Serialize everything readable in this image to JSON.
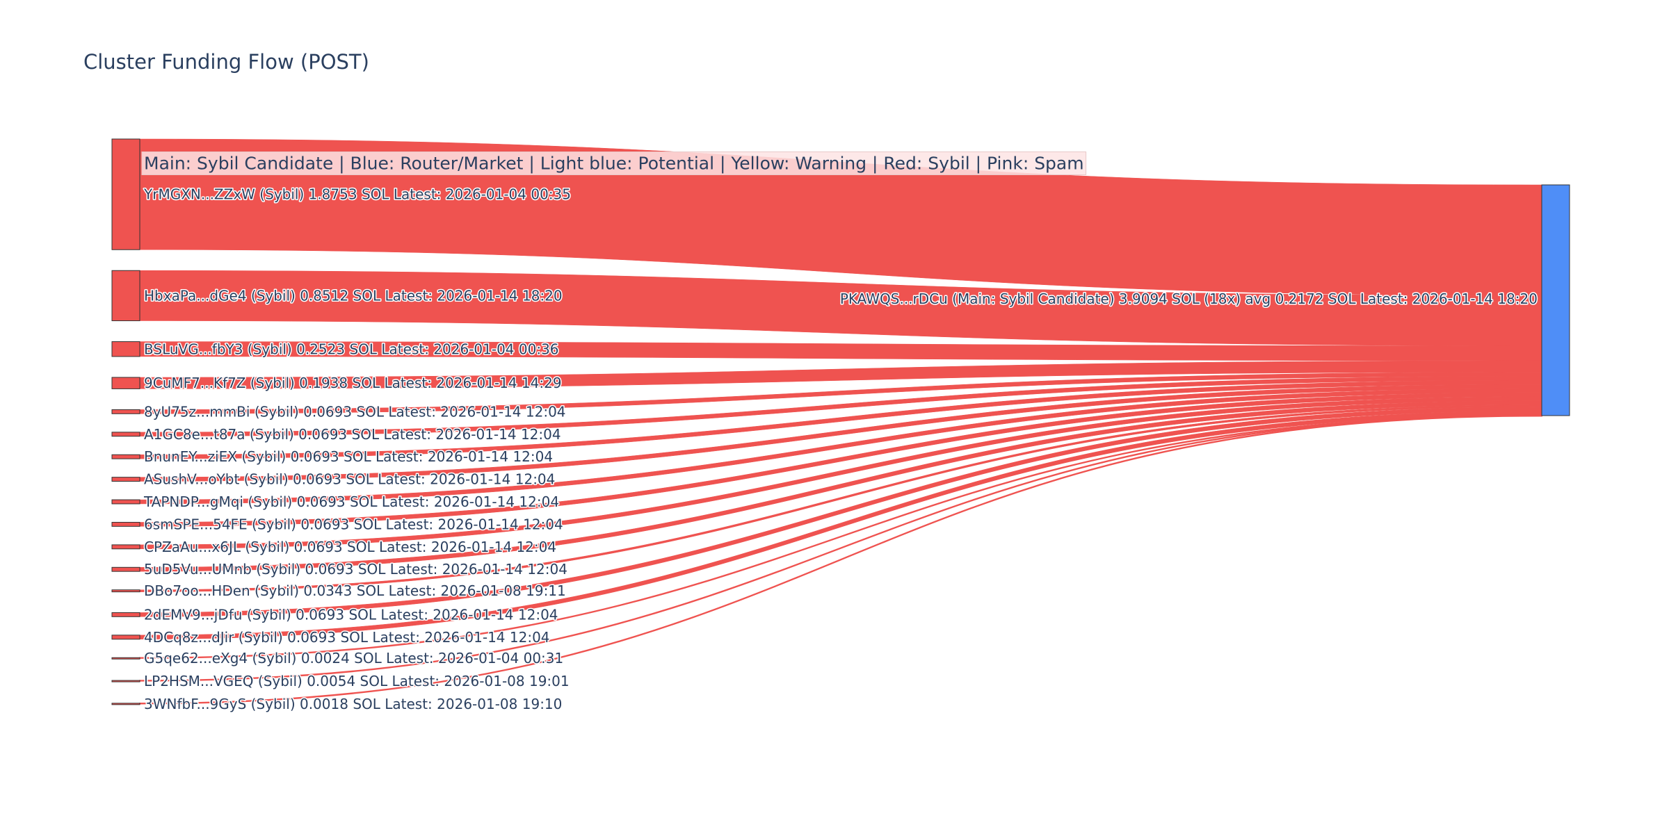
{
  "chart_data": {
    "type": "sankey",
    "title": "Cluster Funding Flow (POST)",
    "legend_note": "Main: Sybil Candidate  |  Blue: Router/Market | Light blue: Potential | Yellow: Warning | Red: Sybil | Pink: Spam",
    "colors": {
      "sybil": "#ef5350",
      "main": "#4f8ef7",
      "node_border": "#333333",
      "legend_bg": "#fde4e4"
    },
    "target": {
      "label": "PKAWQS...rDCu (Main: Sybil Candidate) 3.9094 SOL (18x) avg 0.2172 SOL Latest: 2026-01-14 18:20",
      "value": 3.9094,
      "role": "main"
    },
    "sources": [
      {
        "label": "YrMGXN...ZZxW (Sybil) 1.8753 SOL Latest: 2026-01-04 00:35",
        "value": 1.8753
      },
      {
        "label": "HbxaPa...dGe4 (Sybil) 0.8512 SOL Latest: 2026-01-14 18:20",
        "value": 0.8512
      },
      {
        "label": "BSLuVG...fbY3 (Sybil) 0.2523 SOL Latest: 2026-01-04 00:36",
        "value": 0.2523
      },
      {
        "label": "9CuMF7...Kf7Z (Sybil) 0.1938 SOL Latest: 2026-01-14 14:29",
        "value": 0.1938
      },
      {
        "label": "8yU75z...mmBi (Sybil) 0.0693 SOL Latest: 2026-01-14 12:04",
        "value": 0.0693
      },
      {
        "label": "A1GC8e...t87a (Sybil) 0.0693 SOL Latest: 2026-01-14 12:04",
        "value": 0.0693
      },
      {
        "label": "BnunEY...ziEX (Sybil) 0.0693 SOL Latest: 2026-01-14 12:04",
        "value": 0.0693
      },
      {
        "label": "ASushV...oYbt (Sybil) 0.0693 SOL Latest: 2026-01-14 12:04",
        "value": 0.0693
      },
      {
        "label": "TAPNDP...gMqi (Sybil) 0.0693 SOL Latest: 2026-01-14 12:04",
        "value": 0.0693
      },
      {
        "label": "6smSPE...54FE (Sybil) 0.0693 SOL Latest: 2026-01-14 12:04",
        "value": 0.0693
      },
      {
        "label": "CPZaAu...x6JL (Sybil) 0.0693 SOL Latest: 2026-01-14 12:04",
        "value": 0.0693
      },
      {
        "label": "5uD5Vu...UMnb (Sybil) 0.0693 SOL Latest: 2026-01-14 12:04",
        "value": 0.0693
      },
      {
        "label": "DBo7oo...HDen (Sybil) 0.0343 SOL Latest: 2026-01-08 19:11",
        "value": 0.0343
      },
      {
        "label": "2dEMV9...jDfu (Sybil) 0.0693 SOL Latest: 2026-01-14 12:04",
        "value": 0.0693
      },
      {
        "label": "4DCq8z...dJir (Sybil) 0.0693 SOL Latest: 2026-01-14 12:04",
        "value": 0.0693
      },
      {
        "label": "G5qe62...eXg4 (Sybil) 0.0024 SOL Latest: 2026-01-04 00:31",
        "value": 0.0024
      },
      {
        "label": "LP2HSM...VGEQ (Sybil) 0.0054 SOL Latest: 2026-01-08 19:01",
        "value": 0.0054
      },
      {
        "label": "3WNfbF...9GyS (Sybil) 0.0018 SOL Latest: 2026-01-08 19:10",
        "value": 0.0018
      }
    ]
  }
}
